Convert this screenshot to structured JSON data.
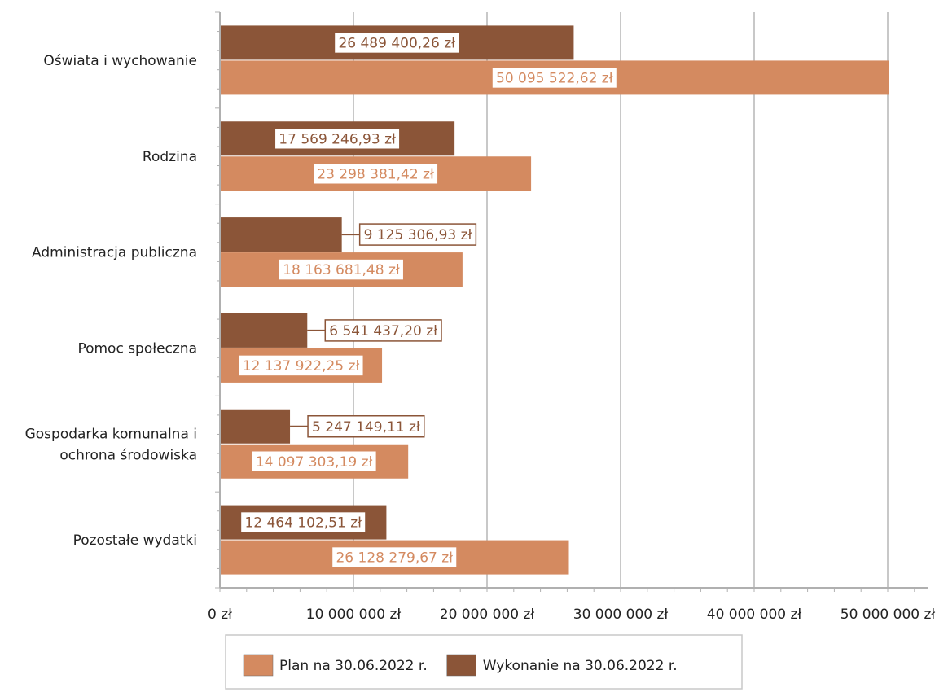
{
  "chart_data": {
    "type": "bar",
    "orientation": "horizontal",
    "categories": [
      [
        "Oświata i wychowanie"
      ],
      [
        "Rodzina"
      ],
      [
        "Administracja publiczna"
      ],
      [
        "Pomoc społeczna"
      ],
      [
        "Gospodarka komunalna i",
        "ochrona środowiska"
      ],
      [
        "Pozostałe wydatki"
      ]
    ],
    "series": [
      {
        "name": "Wykonanie na 30.06.2022 r.",
        "color": "#8b5538",
        "values": [
          26489400.26,
          17569246.93,
          9125306.93,
          6541437.2,
          5247149.11,
          12464102.51
        ],
        "labels": [
          "26 489 400,26 zł",
          "17 569 246,93 zł",
          "9 125 306,93 zł",
          "6 541 437,20 zł",
          "5 247 149,11 zł",
          "12 464 102,51 zł"
        ]
      },
      {
        "name": "Plan na 30.06.2022 r.",
        "color": "#d48a60",
        "values": [
          50095522.62,
          23298381.42,
          18163681.48,
          12137922.25,
          14097303.19,
          26128279.67
        ],
        "labels": [
          "50 095 522,62 zł",
          "23 298 381,42 zł",
          "18 163 681,48 zł",
          "12 137 922,25 zł",
          "14 097 303,19 zł",
          "26 128 279,67 zł"
        ]
      }
    ],
    "xlim": [
      0,
      53000000
    ],
    "xticks": [
      0,
      10000000,
      20000000,
      30000000,
      40000000,
      50000000
    ],
    "xtick_labels": [
      "0 zł",
      "10 000 000 zł",
      "20 000 000 zł",
      "30 000 000 zł",
      "40 000 000 zł",
      "50 000 000 zł"
    ],
    "grid": true,
    "legend_position": "bottom",
    "legend": [
      {
        "label": "Plan na 30.06.2022 r.",
        "color": "#d48a60"
      },
      {
        "label": "Wykonanie na 30.06.2022 r.",
        "color": "#8b5538"
      }
    ]
  }
}
